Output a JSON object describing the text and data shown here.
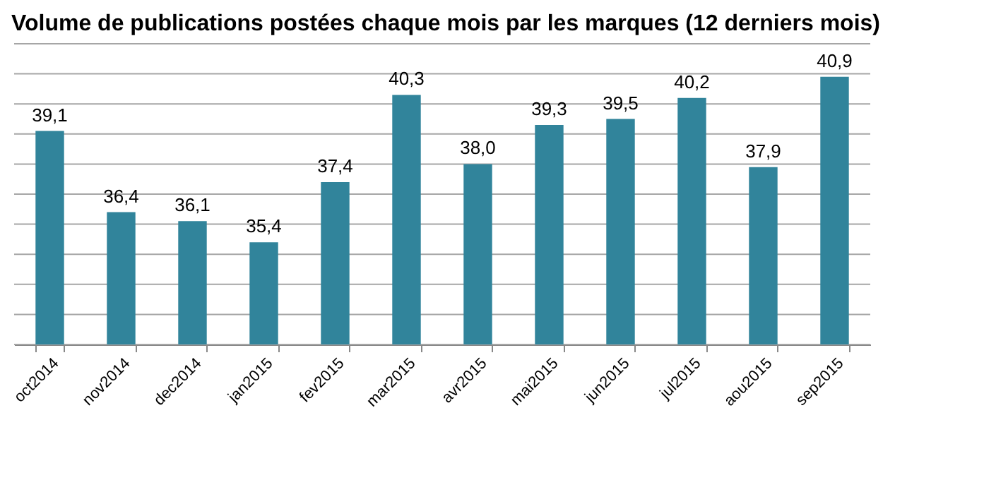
{
  "chart_data": {
    "type": "bar",
    "title": "Volume de publications postées chaque mois par les marques (12 derniers mois)",
    "categories": [
      "oct2014",
      "nov2014",
      "dec2014",
      "jan2015",
      "fev2015",
      "mar2015",
      "avr2015",
      "mai2015",
      "jun2015",
      "jul2015",
      "aou2015",
      "sep2015"
    ],
    "values": [
      39.1,
      36.4,
      36.1,
      35.4,
      37.4,
      40.3,
      38.0,
      39.3,
      39.5,
      40.2,
      37.9,
      40.9
    ],
    "value_labels": [
      "39,1",
      "36,4",
      "36,1",
      "35,4",
      "37,4",
      "40,3",
      "38,0",
      "39,3",
      "39,5",
      "40,2",
      "37,9",
      "40,9"
    ],
    "color": "#31849b",
    "ylim": [
      32,
      42
    ],
    "yticks": [
      {
        "value": 32,
        "label": null
      },
      {
        "value": 33,
        "label": null
      },
      {
        "value": 34,
        "label": null
      },
      {
        "value": 35,
        "label": null
      },
      {
        "value": 36,
        "label": null
      },
      {
        "value": 37,
        "label": null
      },
      {
        "value": 38,
        "label": null
      },
      {
        "value": 39,
        "label": null
      },
      {
        "value": 40,
        "label": null
      },
      {
        "value": 41,
        "label": null
      },
      {
        "value": 42,
        "label": null
      }
    ],
    "tick_labels": "x",
    "grid": "y"
  }
}
